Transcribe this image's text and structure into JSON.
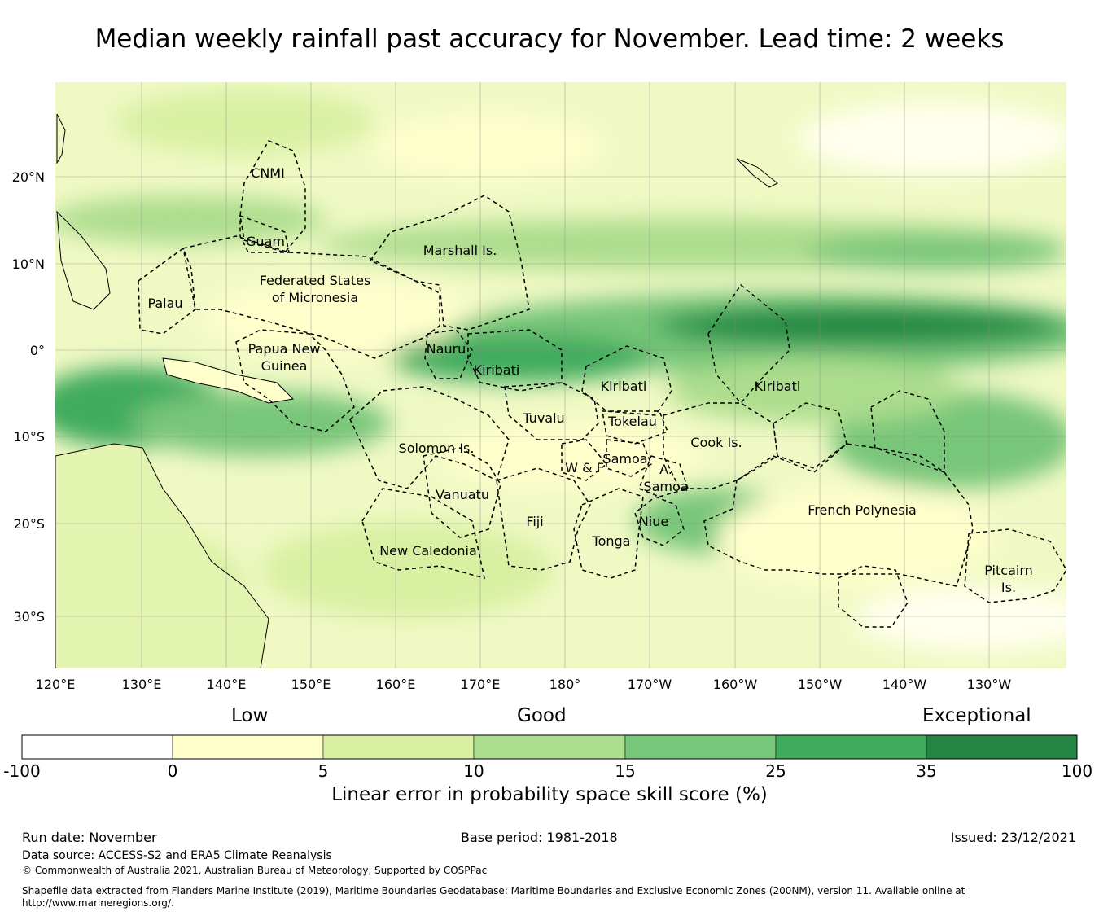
{
  "title": "Median weekly rainfall past accuracy for November. Lead time: 2 weeks",
  "map": {
    "lat_ticks": [
      "20°N",
      "10°N",
      "0°",
      "10°S",
      "20°S",
      "30°S"
    ],
    "lon_ticks": [
      "120°E",
      "130°E",
      "140°E",
      "150°E",
      "160°E",
      "170°E",
      "180°",
      "170°W",
      "160°W",
      "150°W",
      "140°W",
      "130°W"
    ],
    "regions": {
      "cnmi": "CNMI",
      "guam": "Guam",
      "marshall": "Marshall Is.",
      "fsm_1": "Federated States",
      "fsm_2": "of Micronesia",
      "palau": "Palau",
      "png_1": "Papua New",
      "png_2": "Guinea",
      "nauru": "Nauru",
      "kiribati_w": "Kiribati",
      "kiribati_c": "Kiribati",
      "kiribati_e": "Kiribati",
      "tuvalu": "Tuvalu",
      "tokelau": "Tokelau",
      "solomon": "Solomon Is.",
      "samoa": "Samoa",
      "wf": "W & F",
      "asamoa_1": "A.",
      "asamoa_2": "Samoa",
      "cook": "Cook Is.",
      "vanuatu": "Vanuatu",
      "fiji": "Fiji",
      "niue": "Niue",
      "tonga": "Tonga",
      "new_caledonia": "New Caledonia",
      "french_polynesia": "French Polynesia",
      "pitcairn_1": "Pitcairn",
      "pitcairn_2": "Is."
    }
  },
  "colorbar": {
    "categories": [
      "Low",
      "Good",
      "Exceptional"
    ],
    "ticks": [
      "-100",
      "0",
      "5",
      "10",
      "15",
      "25",
      "35",
      "100"
    ],
    "colors": [
      "#ffffff",
      "#ffffcc",
      "#d9f0a3",
      "#addd8e",
      "#78c679",
      "#41ab5d",
      "#238443"
    ],
    "label": "Linear error in probability space skill score (%)"
  },
  "footer": {
    "run_date": "Run date: November",
    "base_period": "Base period: 1981-2018",
    "issued": "Issued: 23/12/2021",
    "data_source": "Data source: ACCESS-S2 and ERA5 Climate Reanalysis",
    "copyright": "© Commonwealth of Australia 2021, Australian Bureau of Meteorology, Supported by COSPPac",
    "shapefile": "Shapefile data extracted from Flanders Marine Institute (2019), Maritime Boundaries Geodatabase: Maritime Boundaries and Exclusive Economic Zones (200NM), version 11. Available online at http://www.marineregions.org/."
  }
}
